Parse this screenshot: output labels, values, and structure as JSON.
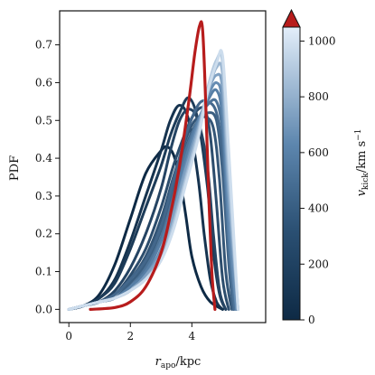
{
  "chart_data": {
    "type": "line",
    "title": "",
    "xlabel": {
      "main": "r",
      "sub": "apo",
      "unit": "/kpc"
    },
    "ylabel": "PDF",
    "xlim": [
      -0.3,
      6.4
    ],
    "ylim": [
      -0.035,
      0.79
    ],
    "x_ticks": [
      "0",
      "2",
      "4"
    ],
    "x_tick_values": [
      0,
      2,
      4
    ],
    "y_ticks": [
      "0.0",
      "0.1",
      "0.2",
      "0.3",
      "0.4",
      "0.5",
      "0.6",
      "0.7"
    ],
    "y_tick_values": [
      0.0,
      0.1,
      0.2,
      0.3,
      0.4,
      0.5,
      0.6,
      0.7
    ],
    "grid": false,
    "colorbar": {
      "label_main": "v",
      "label_sub": "kick",
      "label_unit": "/km s",
      "label_exp": "−1",
      "range": [
        0,
        1050
      ],
      "ticks": [
        "0",
        "200",
        "400",
        "600",
        "800",
        "1000"
      ],
      "tick_values": [
        0,
        200,
        400,
        600,
        800,
        1000
      ],
      "extend": "max",
      "extend_color": "#b71c1c",
      "color_low": "#0e2a45",
      "color_high": "#e3eefa"
    },
    "series": [
      {
        "vkick": 0,
        "x": [
          0,
          0.5,
          1,
          1.5,
          2,
          2.5,
          3,
          3.2,
          3.4,
          3.6,
          3.8,
          4,
          4.3,
          4.6,
          5
        ],
        "y": [
          0,
          0.01,
          0.04,
          0.12,
          0.24,
          0.36,
          0.42,
          0.43,
          0.41,
          0.35,
          0.25,
          0.14,
          0.06,
          0.02,
          0
        ]
      },
      {
        "vkick": 60,
        "x": [
          0,
          0.5,
          1,
          1.5,
          2,
          2.5,
          3,
          3.3,
          3.6,
          3.9,
          4.2,
          4.4,
          4.6,
          4.8,
          5.0
        ],
        "y": [
          0,
          0.01,
          0.03,
          0.08,
          0.18,
          0.3,
          0.42,
          0.5,
          0.54,
          0.5,
          0.35,
          0.2,
          0.08,
          0.02,
          0
        ]
      },
      {
        "vkick": 120,
        "x": [
          0,
          0.5,
          1,
          1.5,
          2,
          2.5,
          3,
          3.3,
          3.6,
          3.9,
          4.2,
          4.5,
          4.7,
          4.9,
          5.1
        ],
        "y": [
          0,
          0.01,
          0.03,
          0.07,
          0.16,
          0.27,
          0.38,
          0.46,
          0.52,
          0.56,
          0.5,
          0.33,
          0.15,
          0.04,
          0
        ]
      },
      {
        "vkick": 180,
        "x": [
          0,
          0.5,
          1,
          1.5,
          2,
          2.5,
          3,
          3.3,
          3.6,
          3.9,
          4.2,
          4.5,
          4.7,
          4.9,
          5.1
        ],
        "y": [
          0,
          0.01,
          0.02,
          0.05,
          0.11,
          0.2,
          0.32,
          0.42,
          0.5,
          0.53,
          0.5,
          0.38,
          0.2,
          0.05,
          0
        ]
      },
      {
        "vkick": 240,
        "x": [
          0,
          0.5,
          1,
          1.5,
          2,
          2.5,
          3,
          3.4,
          3.8,
          4.1,
          4.4,
          4.6,
          4.8,
          5.0,
          5.2
        ],
        "y": [
          0,
          0.01,
          0.02,
          0.04,
          0.09,
          0.16,
          0.27,
          0.38,
          0.47,
          0.52,
          0.53,
          0.46,
          0.28,
          0.08,
          0
        ]
      },
      {
        "vkick": 300,
        "x": [
          0,
          0.5,
          1,
          1.5,
          2,
          2.5,
          3,
          3.4,
          3.8,
          4.1,
          4.4,
          4.7,
          4.9,
          5.1,
          5.3
        ],
        "y": [
          0,
          0.01,
          0.02,
          0.04,
          0.08,
          0.14,
          0.24,
          0.35,
          0.45,
          0.5,
          0.51,
          0.48,
          0.34,
          0.1,
          0
        ]
      },
      {
        "vkick": 360,
        "x": [
          0,
          0.5,
          1,
          1.5,
          2,
          2.5,
          3,
          3.4,
          3.8,
          4.2,
          4.5,
          4.8,
          5.0,
          5.2,
          5.35
        ],
        "y": [
          0,
          0.01,
          0.02,
          0.03,
          0.07,
          0.12,
          0.21,
          0.32,
          0.43,
          0.5,
          0.52,
          0.5,
          0.36,
          0.12,
          0
        ]
      },
      {
        "vkick": 420,
        "x": [
          0,
          0.5,
          1,
          1.5,
          2,
          2.5,
          3,
          3.4,
          3.8,
          4.2,
          4.5,
          4.8,
          5.0,
          5.2,
          5.35
        ],
        "y": [
          0,
          0.01,
          0.02,
          0.04,
          0.08,
          0.13,
          0.22,
          0.34,
          0.46,
          0.54,
          0.55,
          0.52,
          0.4,
          0.14,
          0
        ]
      },
      {
        "vkick": 500,
        "x": [
          0,
          0.5,
          1,
          1.5,
          2,
          2.5,
          3,
          3.4,
          3.8,
          4.2,
          4.5,
          4.8,
          5.0,
          5.2,
          5.4
        ],
        "y": [
          0,
          0.01,
          0.02,
          0.03,
          0.06,
          0.11,
          0.19,
          0.3,
          0.42,
          0.5,
          0.54,
          0.55,
          0.46,
          0.18,
          0
        ]
      },
      {
        "vkick": 580,
        "x": [
          0,
          0.5,
          1,
          1.5,
          2,
          2.5,
          3,
          3.4,
          3.8,
          4.2,
          4.5,
          4.8,
          5.0,
          5.2,
          5.45
        ],
        "y": [
          0,
          0.01,
          0.02,
          0.03,
          0.06,
          0.1,
          0.18,
          0.28,
          0.4,
          0.5,
          0.55,
          0.58,
          0.5,
          0.2,
          0
        ]
      },
      {
        "vkick": 660,
        "x": [
          0,
          0.5,
          1,
          1.5,
          2,
          2.5,
          3,
          3.4,
          3.8,
          4.2,
          4.5,
          4.8,
          5.0,
          5.2,
          5.45
        ],
        "y": [
          0,
          0.01,
          0.02,
          0.03,
          0.05,
          0.09,
          0.16,
          0.26,
          0.38,
          0.49,
          0.56,
          0.6,
          0.54,
          0.25,
          0
        ]
      },
      {
        "vkick": 740,
        "x": [
          0,
          0.5,
          1,
          1.5,
          2,
          2.5,
          3,
          3.4,
          3.8,
          4.2,
          4.5,
          4.8,
          5.0,
          5.2,
          5.5
        ],
        "y": [
          0,
          0.01,
          0.02,
          0.03,
          0.05,
          0.09,
          0.15,
          0.25,
          0.37,
          0.48,
          0.57,
          0.62,
          0.58,
          0.3,
          0
        ]
      },
      {
        "vkick": 820,
        "x": [
          0,
          0.5,
          1,
          1.5,
          2,
          2.5,
          3,
          3.4,
          3.8,
          4.2,
          4.5,
          4.8,
          5.0,
          5.2,
          5.5
        ],
        "y": [
          0,
          0.01,
          0.02,
          0.03,
          0.05,
          0.08,
          0.14,
          0.23,
          0.35,
          0.47,
          0.57,
          0.64,
          0.62,
          0.34,
          0
        ]
      },
      {
        "vkick": 900,
        "x": [
          0,
          0.5,
          1,
          1.5,
          2,
          2.5,
          3,
          3.4,
          3.8,
          4.2,
          4.5,
          4.8,
          5.0,
          5.2,
          5.5
        ],
        "y": [
          0,
          0.01,
          0.02,
          0.03,
          0.05,
          0.08,
          0.13,
          0.22,
          0.34,
          0.46,
          0.58,
          0.66,
          0.65,
          0.38,
          0
        ]
      },
      {
        "vkick": 980,
        "x": [
          0,
          0.5,
          1,
          1.5,
          2,
          2.5,
          3,
          3.4,
          3.8,
          4.2,
          4.5,
          4.8,
          5.0,
          5.2,
          5.5
        ],
        "y": [
          0,
          0.01,
          0.02,
          0.03,
          0.05,
          0.08,
          0.13,
          0.21,
          0.33,
          0.45,
          0.57,
          0.65,
          0.67,
          0.42,
          0
        ]
      }
    ],
    "highlight": {
      "color": "#b71c1c",
      "x": [
        0.7,
        1.5,
        2.0,
        2.5,
        3.0,
        3.3,
        3.6,
        3.9,
        4.1,
        4.25,
        4.35,
        4.45,
        4.55,
        4.65,
        4.75
      ],
      "y": [
        0,
        0.005,
        0.02,
        0.06,
        0.15,
        0.25,
        0.38,
        0.55,
        0.68,
        0.75,
        0.74,
        0.55,
        0.3,
        0.1,
        0
      ]
    }
  }
}
